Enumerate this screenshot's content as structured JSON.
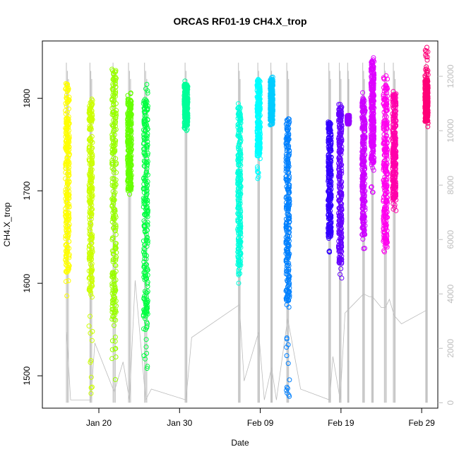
{
  "chart_data": {
    "type": "scatter",
    "title": "ORCAS RF01-19 CH4.X_trop",
    "xlabel": "Date",
    "ylabel": "CH4.X_trop",
    "x_ticks": [
      "Jan 20",
      "Jan 30",
      "Feb 09",
      "Feb 19",
      "Feb 29"
    ],
    "x_tick_days": [
      20,
      30,
      40,
      50,
      60
    ],
    "xlim_days": [
      13.0,
      62.0
    ],
    "ylim": [
      1465,
      1862
    ],
    "y_ticks": [
      1500,
      1600,
      1700,
      1800
    ],
    "y_tick_labels": [
      "1500",
      "1600",
      "1700",
      "1800"
    ],
    "y2_ticks": [
      0,
      2000,
      4000,
      6000,
      8000,
      10000,
      12000
    ],
    "y2_tick_labels": [
      "0",
      "2000",
      "4000",
      "6000",
      "8000",
      "10000",
      "12000"
    ],
    "y2lim": [
      -200,
      13300
    ],
    "flights": [
      {
        "day": 16.1,
        "width": 0.5,
        "low": 1585,
        "high": 1825,
        "core": [
          1610,
          1815
        ],
        "color": "#FFFF00"
      },
      {
        "day": 19.0,
        "width": 0.45,
        "low": 1478,
        "high": 1812,
        "core": [
          1590,
          1800
        ],
        "color": "#CCFF00"
      },
      {
        "day": 21.9,
        "width": 0.55,
        "low": 1480,
        "high": 1837,
        "core": [
          1560,
          1830
        ],
        "color": "#99FF00"
      },
      {
        "day": 23.8,
        "width": 0.5,
        "low": 1690,
        "high": 1808,
        "core": [
          1700,
          1800
        ],
        "color": "#66FF00"
      },
      {
        "day": 25.8,
        "width": 0.55,
        "low": 1498,
        "high": 1822,
        "core": [
          1550,
          1800
        ],
        "color": "#00FF40"
      },
      {
        "day": 30.8,
        "width": 0.45,
        "low": 1765,
        "high": 1820,
        "core": [
          1770,
          1815
        ],
        "color": "#00FF99"
      },
      {
        "day": 37.4,
        "width": 0.4,
        "low": 1595,
        "high": 1795,
        "core": [
          1610,
          1790
        ],
        "color": "#00FFDD"
      },
      {
        "day": 39.8,
        "width": 0.4,
        "low": 1712,
        "high": 1825,
        "core": [
          1740,
          1820
        ],
        "color": "#00FFFF"
      },
      {
        "day": 41.4,
        "width": 0.35,
        "low": 1770,
        "high": 1825,
        "core": [
          1775,
          1820
        ],
        "color": "#00CCFF"
      },
      {
        "day": 43.4,
        "width": 0.45,
        "low": 1475,
        "high": 1787,
        "core": [
          1580,
          1780
        ],
        "color": "#0080FF"
      },
      {
        "day": 48.6,
        "width": 0.4,
        "low": 1633,
        "high": 1780,
        "core": [
          1650,
          1775
        ],
        "color": "#3300FF"
      },
      {
        "day": 49.9,
        "width": 0.4,
        "low": 1600,
        "high": 1800,
        "core": [
          1620,
          1795
        ],
        "color": "#6600FF"
      },
      {
        "day": 50.9,
        "width": 0.3,
        "low": 1772,
        "high": 1782,
        "core": [
          1773,
          1781
        ],
        "color": "#9900FF"
      },
      {
        "day": 52.8,
        "width": 0.4,
        "low": 1637,
        "high": 1810,
        "core": [
          1650,
          1800
        ],
        "color": "#CC00FF"
      },
      {
        "day": 53.9,
        "width": 0.4,
        "low": 1690,
        "high": 1844,
        "core": [
          1730,
          1840
        ],
        "color": "#DD00FF"
      },
      {
        "day": 55.5,
        "width": 0.5,
        "low": 1632,
        "high": 1825,
        "core": [
          1640,
          1815
        ],
        "color": "#FF00EE"
      },
      {
        "day": 56.6,
        "width": 0.45,
        "low": 1678,
        "high": 1812,
        "core": [
          1690,
          1805
        ],
        "color": "#FF00AA"
      },
      {
        "day": 60.6,
        "width": 0.4,
        "low": 1768,
        "high": 1858,
        "core": [
          1775,
          1820
        ],
        "color": "#FF0077"
      }
    ],
    "altitude_track": {
      "color": "#bbbbbb",
      "points_days": [
        16.0,
        16.5,
        19.0,
        19.5,
        21.9,
        23.0,
        23.8,
        24.5,
        25.8,
        26.5,
        30.8,
        31.5,
        37.4,
        38.0,
        39.8,
        40.5,
        41.4,
        42.0,
        43.4,
        45.0,
        48.6,
        49.0,
        49.9,
        50.5,
        52.8,
        53.5,
        53.9,
        55.0,
        55.5,
        56.0,
        56.6,
        57.5,
        60.6
      ],
      "points_alt": [
        2600,
        100,
        100,
        2200,
        400,
        1500,
        100,
        4500,
        100,
        500,
        100,
        2400,
        3600,
        800,
        2600,
        100,
        1300,
        100,
        3100,
        500,
        100,
        1700,
        100,
        3300,
        4000,
        3900,
        3900,
        3500,
        3500,
        3800,
        3200,
        2900,
        3400
      ]
    },
    "grid": false,
    "legend": "none"
  }
}
